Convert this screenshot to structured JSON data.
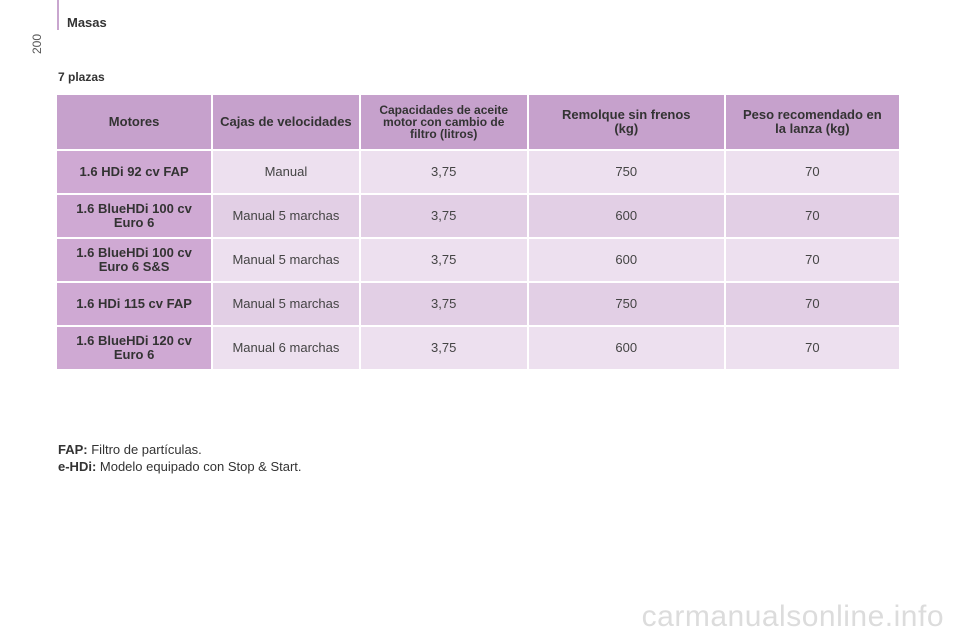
{
  "header": {
    "section": "Masas",
    "page_number": "200"
  },
  "subtitle": "7 plazas",
  "table": {
    "columns": [
      "Motores",
      "Cajas de velocidades",
      "Capacidades de aceite motor con cambio de filtro (litros)",
      "Remolque sin frenos (kg)",
      "Peso recomendado en la lanza (kg)"
    ],
    "rows": [
      {
        "motor": "1.6 HDi 92 cv FAP",
        "gearbox": "Manual",
        "oil": "3,75",
        "trailer": "750",
        "drawbar": "70"
      },
      {
        "motor": "1.6 BlueHDi 100 cv Euro 6",
        "gearbox": "Manual 5 marchas",
        "oil": "3,75",
        "trailer": "600",
        "drawbar": "70"
      },
      {
        "motor": "1.6 BlueHDi 100 cv Euro 6 S&S",
        "gearbox": "Manual 5 marchas",
        "oil": "3,75",
        "trailer": "600",
        "drawbar": "70"
      },
      {
        "motor": "1.6 HDi 115 cv FAP",
        "gearbox": "Manual 5 marchas",
        "oil": "3,75",
        "trailer": "750",
        "drawbar": "70"
      },
      {
        "motor": "1.6 BlueHDi 120 cv Euro 6",
        "gearbox": "Manual 6 marchas",
        "oil": "3,75",
        "trailer": "600",
        "drawbar": "70"
      }
    ]
  },
  "notes": [
    {
      "term": "FAP:",
      "text": " Filtro de partículas."
    },
    {
      "term": "e-HDi:",
      "text": " Modelo equipado con Stop & Start."
    }
  ],
  "watermark": "carmanualsonline.info"
}
